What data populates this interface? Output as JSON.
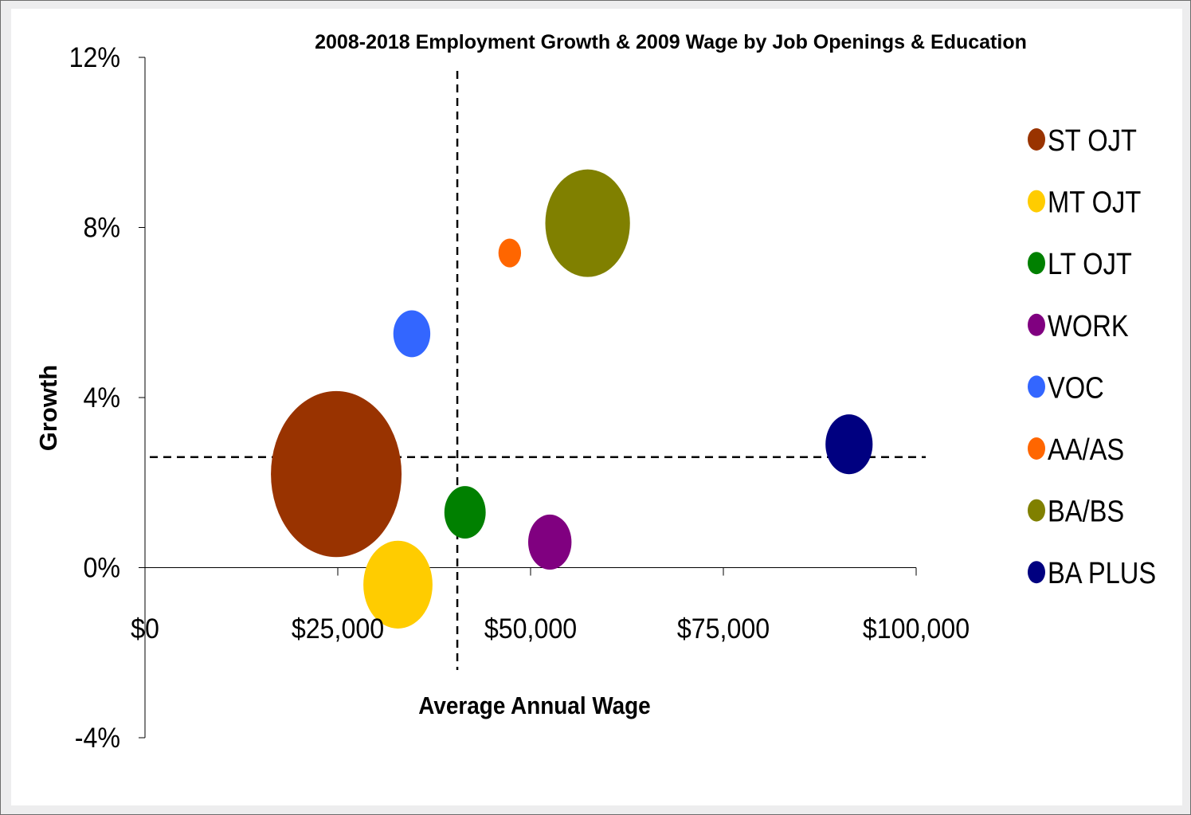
{
  "chart_data": {
    "type": "bubble",
    "title": "2008-2018 Employment Growth & 2009 Wage by Job Openings & Education",
    "xlabel": "Average Annual Wage",
    "ylabel": "Growth",
    "xlim": [
      0,
      100000
    ],
    "ylim": [
      -4,
      12
    ],
    "x_ticks": [
      0,
      25000,
      50000,
      75000,
      100000
    ],
    "x_tick_labels": [
      "$0",
      "$25,000",
      "$50,000",
      "$75,000",
      "$100,000"
    ],
    "y_ticks": [
      12,
      8,
      4,
      0,
      -4
    ],
    "y_tick_labels": [
      "12%",
      "8%",
      "4%",
      "0%",
      "-4%"
    ],
    "reference_lines": {
      "x": 40500,
      "y": 2.6
    },
    "legend_position": "right",
    "series": [
      {
        "name": "ST OJT",
        "x": 24800,
        "y": 2.2,
        "size": 1.0,
        "color": "#993300"
      },
      {
        "name": "MT OJT",
        "x": 32800,
        "y": -0.4,
        "size": 0.28,
        "color": "#ffcc00"
      },
      {
        "name": "LT OJT",
        "x": 41500,
        "y": 1.3,
        "size": 0.1,
        "color": "#008000"
      },
      {
        "name": "WORK",
        "x": 52500,
        "y": 0.6,
        "size": 0.11,
        "color": "#800080"
      },
      {
        "name": "VOC",
        "x": 34600,
        "y": 5.5,
        "size": 0.08,
        "color": "#3366ff"
      },
      {
        "name": "AA/AS",
        "x": 47300,
        "y": 7.4,
        "size": 0.03,
        "color": "#ff6600"
      },
      {
        "name": "BA/BS",
        "x": 57400,
        "y": 8.1,
        "size": 0.42,
        "color": "#808000"
      },
      {
        "name": "BA PLUS",
        "x": 91300,
        "y": 2.9,
        "size": 0.13,
        "color": "#000080"
      }
    ]
  }
}
